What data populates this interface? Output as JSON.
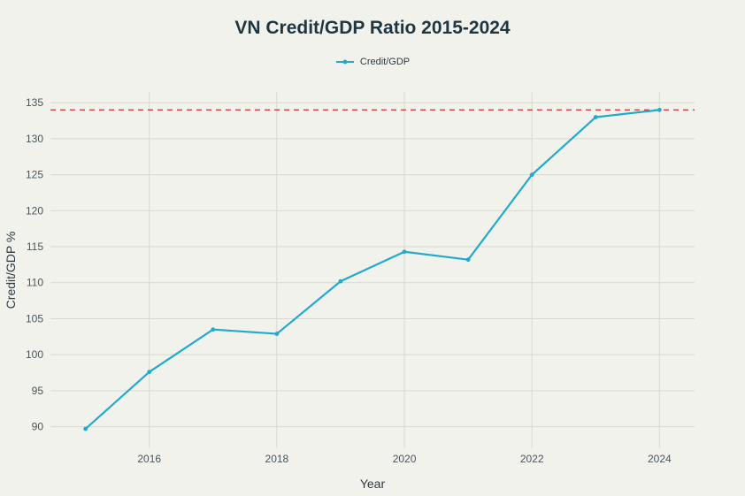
{
  "chart_data": {
    "type": "line",
    "title": "VN Credit/GDP Ratio 2015-2024",
    "xlabel": "Year",
    "ylabel": "Credit/GDP %",
    "x": [
      2015,
      2016,
      2017,
      2018,
      2019,
      2020,
      2021,
      2022,
      2023,
      2024
    ],
    "series": [
      {
        "name": "Credit/GDP",
        "color": "#22aacc",
        "values": [
          89.7,
          97.6,
          103.5,
          102.9,
          110.2,
          114.3,
          113.2,
          125.0,
          133.0,
          134.0
        ]
      }
    ],
    "reference_line": {
      "y": 134,
      "color": "#cc4444",
      "style": "dashed"
    },
    "xlim": [
      2014.45,
      2024.55
    ],
    "ylim": [
      87,
      136.5
    ],
    "xticks": [
      2016,
      2018,
      2020,
      2022,
      2024
    ],
    "yticks": [
      90,
      95,
      100,
      105,
      110,
      115,
      120,
      125,
      130,
      135
    ],
    "grid": true,
    "legend_position": "top-center"
  }
}
